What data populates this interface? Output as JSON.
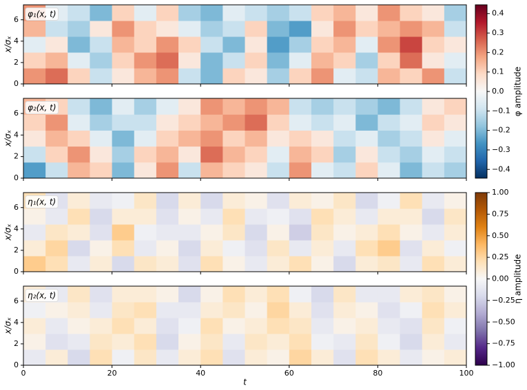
{
  "chart_data": {
    "type": "heatmap",
    "panels": [
      {
        "label": "φ₁(x, t)",
        "ylabel": "x/σₓ",
        "colorbar": 0,
        "xlim": [
          0,
          100
        ],
        "ylim": [
          0,
          7.4
        ],
        "yticks": [
          0,
          2,
          4,
          6
        ],
        "values": [
          [
            0.2,
            0.25,
            0.1,
            -0.1,
            0.05,
            0.15,
            0.2,
            -0.1,
            -0.2,
            0.1,
            0.05,
            -0.15,
            0.1,
            0.2,
            -0.05,
            -0.1,
            0.15,
            0.1,
            0.2,
            -0.1
          ],
          [
            0.1,
            0.15,
            -0.05,
            -0.15,
            0.1,
            0.2,
            0.25,
            0.05,
            -0.2,
            -0.1,
            0.1,
            -0.2,
            -0.05,
            0.15,
            0.1,
            -0.15,
            0.1,
            0.25,
            0.05,
            -0.05
          ],
          [
            -0.05,
            0.05,
            -0.2,
            -0.1,
            0.15,
            0.1,
            0.2,
            0.1,
            -0.1,
            -0.2,
            0.05,
            -0.25,
            -0.15,
            0.1,
            0.15,
            -0.05,
            0.2,
            0.3,
            0.1,
            0.05
          ],
          [
            0.15,
            -0.1,
            -0.15,
            0.05,
            0.2,
            0.1,
            0.05,
            -0.05,
            -0.15,
            -0.1,
            0.1,
            -0.2,
            -0.25,
            0.05,
            0.2,
            0.1,
            0.15,
            0.2,
            0.15,
            -0.1
          ],
          [
            0.2,
            -0.05,
            -0.1,
            -0.2,
            0.1,
            -0.05,
            0.1,
            -0.15,
            -0.2,
            -0.05,
            -0.1,
            -0.15,
            -0.1,
            0.1,
            0.15,
            0.05,
            0.2,
            0.1,
            0.05,
            -0.15
          ]
        ]
      },
      {
        "label": "φ₂(x, t)",
        "ylabel": "x/σₓ",
        "colorbar": 0,
        "xlim": [
          0,
          100
        ],
        "ylim": [
          0,
          7.4
        ],
        "yticks": [
          0,
          2,
          4,
          6
        ],
        "values": [
          [
            -0.25,
            -0.1,
            0.15,
            0.1,
            -0.2,
            0.05,
            0.2,
            -0.1,
            0.15,
            0.1,
            0.05,
            -0.1,
            0.2,
            -0.05,
            -0.1,
            0.1,
            -0.05,
            -0.2,
            -0.1,
            -0.15
          ],
          [
            -0.1,
            0.1,
            0.2,
            0.05,
            -0.15,
            0.1,
            0.15,
            0.05,
            0.25,
            0.15,
            0.1,
            -0.05,
            0.15,
            0.1,
            -0.15,
            0.05,
            -0.1,
            -0.15,
            -0.05,
            -0.1
          ],
          [
            0.05,
            0.15,
            0.1,
            -0.05,
            -0.2,
            -0.05,
            0.1,
            0.15,
            0.2,
            0.1,
            0.15,
            0.05,
            0.1,
            0.05,
            -0.1,
            -0.05,
            -0.15,
            -0.1,
            0.05,
            -0.05
          ],
          [
            0.1,
            0.2,
            -0.05,
            -0.15,
            -0.1,
            -0.1,
            0.05,
            0.1,
            0.15,
            0.2,
            0.25,
            0.1,
            -0.05,
            -0.1,
            -0.05,
            -0.2,
            -0.1,
            -0.05,
            0.1,
            0.05
          ],
          [
            0.15,
            0.1,
            -0.1,
            -0.2,
            -0.05,
            -0.15,
            -0.05,
            0.05,
            0.2,
            0.15,
            0.2,
            0.15,
            -0.1,
            -0.15,
            -0.1,
            -0.15,
            -0.2,
            -0.1,
            0.05,
            0.1
          ]
        ]
      },
      {
        "label": "η₁(x, t)",
        "ylabel": "x/σₓ",
        "colorbar": 1,
        "xlim": [
          0,
          100
        ],
        "ylim": [
          0,
          7.4
        ],
        "yticks": [
          0,
          2,
          4,
          6
        ],
        "values": [
          [
            0.3,
            0.2,
            -0.1,
            0.1,
            -0.2,
            0.15,
            0.1,
            -0.15,
            0.2,
            0.05,
            -0.1,
            0.1,
            0.2,
            0.05,
            -0.2,
            0.1,
            0.15,
            -0.1,
            0.2,
            0.1
          ],
          [
            0.1,
            0.25,
            -0.2,
            0.05,
            0.2,
            -0.1,
            0.05,
            -0.2,
            0.1,
            -0.05,
            -0.15,
            0.15,
            -0.1,
            0.1,
            -0.1,
            0.2,
            0.3,
            -0.15,
            0.1,
            -0.05
          ],
          [
            -0.1,
            0.15,
            0.1,
            -0.15,
            0.3,
            -0.05,
            -0.1,
            -0.1,
            0.05,
            0.15,
            -0.2,
            0.05,
            -0.25,
            0.15,
            0.05,
            0.1,
            0.2,
            0.05,
            -0.1,
            0.1
          ],
          [
            0.05,
            -0.1,
            0.2,
            -0.2,
            0.1,
            0.1,
            -0.15,
            0.05,
            -0.1,
            0.2,
            -0.1,
            -0.05,
            -0.15,
            0.2,
            0.1,
            -0.1,
            0.1,
            0.1,
            -0.2,
            0.15
          ],
          [
            0.2,
            -0.15,
            0.1,
            -0.1,
            -0.05,
            0.15,
            -0.2,
            0.1,
            -0.2,
            0.1,
            0.05,
            -0.15,
            0.1,
            0.05,
            0.15,
            -0.2,
            -0.05,
            0.2,
            -0.1,
            0.05
          ]
        ]
      },
      {
        "label": "η₂(x, t)",
        "ylabel": "x/σₓ",
        "xlabel": "t",
        "colorbar": 1,
        "xlim": [
          0,
          100
        ],
        "ylim": [
          0,
          7.4
        ],
        "yticks": [
          0,
          2,
          4,
          6
        ],
        "xticks": [
          0,
          20,
          40,
          60,
          80,
          100
        ],
        "values": [
          [
            -0.1,
            0.1,
            -0.2,
            0.2,
            -0.05,
            0.15,
            -0.1,
            0.1,
            0.2,
            -0.15,
            0.1,
            0.05,
            0.25,
            0.1,
            -0.15,
            0.2,
            0.1,
            -0.1,
            0.05,
            0.1
          ],
          [
            0.05,
            -0.15,
            -0.1,
            0.15,
            0.1,
            0.2,
            -0.2,
            0.05,
            0.15,
            -0.1,
            0.15,
            0.1,
            0.2,
            -0.05,
            -0.1,
            0.15,
            -0.05,
            -0.2,
            0.1,
            -0.1
          ],
          [
            0.1,
            -0.1,
            0.05,
            0.1,
            0.2,
            0.1,
            -0.15,
            -0.05,
            0.2,
            0.05,
            0.1,
            0.2,
            0.15,
            -0.1,
            0.05,
            0.1,
            -0.1,
            -0.15,
            0.15,
            -0.05
          ],
          [
            -0.05,
            0.05,
            0.1,
            -0.1,
            0.15,
            0.2,
            -0.1,
            -0.1,
            0.1,
            0.15,
            0.05,
            0.25,
            0.1,
            -0.15,
            0.1,
            0.05,
            -0.15,
            -0.05,
            0.2,
            0.1
          ],
          [
            0.1,
            -0.1,
            0.15,
            -0.15,
            0.1,
            0.1,
            0.05,
            -0.2,
            0.05,
            0.2,
            0.1,
            0.2,
            -0.05,
            -0.2,
            0.15,
            -0.1,
            -0.1,
            0.1,
            0.15,
            0.05
          ]
        ]
      }
    ],
    "colorbars": [
      {
        "label": "φ amplitude",
        "lim": [
          -0.445,
          0.445
        ],
        "colors": [
          "#053061",
          "#2166ac",
          "#4393c3",
          "#92c5de",
          "#d1e5f0",
          "#f7f7f7",
          "#fddbc7",
          "#f4a582",
          "#d6604d",
          "#b2182b",
          "#67001f"
        ],
        "ticks": [
          {
            "value": -0.4,
            "label": "−0.4"
          },
          {
            "value": -0.3,
            "label": "−0.3"
          },
          {
            "value": -0.2,
            "label": "−0.2"
          },
          {
            "value": -0.1,
            "label": "−0.1"
          },
          {
            "value": 0,
            "label": "0.0"
          },
          0.1,
          0.2,
          0.3,
          0.4
        ]
      },
      {
        "label": "η amplitude",
        "lim": [
          -1,
          1
        ],
        "colors": [
          "#2d004b",
          "#542788",
          "#8073ac",
          "#b2abd2",
          "#d8daeb",
          "#f7f7f7",
          "#fee0b6",
          "#fdb863",
          "#e08214",
          "#b35806",
          "#7f3b08"
        ],
        "ticks": [
          {
            "value": -1,
            "label": "−1.00"
          },
          {
            "value": -0.75,
            "label": "−0.75"
          },
          {
            "value": -0.5,
            "label": "−0.50"
          },
          {
            "value": -0.25,
            "label": "−0.25"
          },
          {
            "value": 0,
            "label": "0.00"
          },
          0.25,
          {
            "value": 0.5,
            "label": "0.50"
          },
          0.75,
          {
            "value": 1,
            "label": "1.00"
          }
        ]
      }
    ]
  }
}
